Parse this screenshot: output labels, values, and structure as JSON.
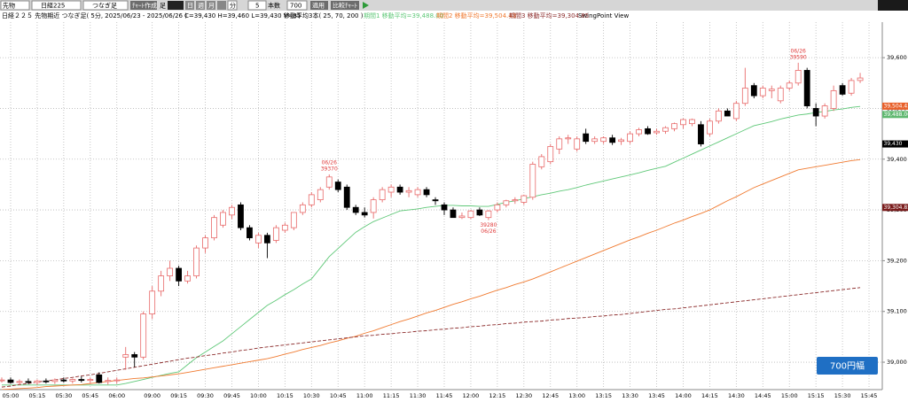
{
  "toolbar": {
    "market": "先物",
    "symbol": "日経225",
    "mode": "つなぎ足",
    "create": "ﾁｬｰﾄ作成",
    "bar": "足",
    "day": "日",
    "week": "週",
    "month": "月",
    "minute": "分",
    "interval": 5,
    "count_label": "本数",
    "count": 700,
    "apply": "適用",
    "compare": "比較ﾁｬｰﾄ"
  },
  "chart_data": {
    "type": "candlestick",
    "title": "日経２２５ 先物期近 つなぎ足( 5分, 2025/06/23 - 2025/06/26 )",
    "ohlcv_text": "C=39,430 H=39,460 L=39,430 V=85",
    "ma_text": "移動平均3本( 25, 70, 200 )",
    "view_text": "SwingPoint View",
    "range_button": "700円幅",
    "up_color": "#e86a6a",
    "down_color": "#000000",
    "grid": true,
    "ylim": [
      38946,
      39670
    ],
    "yticks": [
      {
        "value": 39000,
        "label": "39,000"
      },
      {
        "value": 39100,
        "label": "39,100"
      },
      {
        "value": 39200,
        "label": "39,200"
      },
      {
        "value": 39300,
        "label": "39,300"
      },
      {
        "value": 39400,
        "label": "39,400"
      },
      {
        "value": 39500,
        "label": "39,500"
      },
      {
        "value": 39600,
        "label": "39,600"
      }
    ],
    "categories": [
      null,
      "05:00",
      null,
      null,
      "05:15",
      null,
      null,
      "05:30",
      null,
      null,
      "05:45",
      null,
      null,
      "06:00",
      null,
      null,
      null,
      "09:00",
      null,
      null,
      "09:15",
      null,
      null,
      "09:30",
      null,
      null,
      "09:45",
      null,
      null,
      "10:00",
      null,
      null,
      "10:15",
      null,
      null,
      "10:30",
      null,
      null,
      "10:45",
      null,
      null,
      "11:00",
      null,
      null,
      "11:15",
      null,
      null,
      "11:30",
      null,
      null,
      "11:45",
      null,
      null,
      "12:00",
      null,
      null,
      "12:15",
      null,
      null,
      "12:30",
      null,
      null,
      "12:45",
      null,
      null,
      "13:00",
      null,
      null,
      "13:15",
      null,
      null,
      "13:30",
      null,
      null,
      "13:45",
      null,
      null,
      "14:00",
      null,
      null,
      "14:15",
      null,
      null,
      "14:30",
      null,
      null,
      "14:45",
      null,
      null,
      "15:00",
      null,
      null,
      "15:15",
      null,
      null,
      "15:30",
      null,
      null,
      "15:45"
    ],
    "open": [
      38965,
      38965,
      38960,
      38962,
      38960,
      38963,
      38962,
      38965,
      38963,
      38966,
      38964,
      38975,
      38962,
      38964,
      39010,
      39015,
      39010,
      39095,
      39140,
      39170,
      39185,
      39160,
      39170,
      39225,
      39245,
      39270,
      39290,
      39310,
      39265,
      39235,
      39250,
      39240,
      39260,
      39265,
      39295,
      39310,
      39320,
      39345,
      39355,
      39345,
      39305,
      39295,
      39295,
      39320,
      39335,
      39345,
      39335,
      39330,
      39340,
      39320,
      39310,
      39300,
      39285,
      39285,
      39300,
      39285,
      39300,
      39310,
      39318,
      39315,
      39325,
      39385,
      39395,
      39420,
      39440,
      39420,
      39450,
      39435,
      39435,
      39442,
      39435,
      39435,
      39450,
      39460,
      39452,
      39455,
      39460,
      39468,
      39470,
      39468,
      39450,
      39475,
      39495,
      39480,
      39510,
      39545,
      39525,
      39535,
      39515,
      39540,
      39550,
      39575,
      39500,
      39485,
      39500,
      39545,
      39530,
      39555,
      null
    ],
    "high": [
      38970,
      38970,
      38966,
      38968,
      38966,
      38968,
      38968,
      38970,
      38968,
      38972,
      38970,
      38980,
      38970,
      38970,
      39030,
      39020,
      39100,
      39150,
      39180,
      39200,
      39190,
      39180,
      39230,
      39250,
      39290,
      39300,
      39310,
      39315,
      39270,
      39255,
      39255,
      39270,
      39275,
      39295,
      39315,
      39335,
      39345,
      39370,
      39360,
      39350,
      39310,
      39305,
      39325,
      39345,
      39350,
      39350,
      39345,
      39345,
      39345,
      39325,
      39315,
      39305,
      39295,
      39300,
      39305,
      39300,
      39315,
      39320,
      39325,
      39330,
      39395,
      39410,
      39430,
      39445,
      39448,
      39445,
      39460,
      39445,
      39445,
      39448,
      39442,
      39455,
      39462,
      39465,
      39460,
      39465,
      39472,
      39480,
      39480,
      39475,
      39480,
      39500,
      39500,
      39515,
      39580,
      39550,
      39545,
      39545,
      39545,
      39555,
      39590,
      39580,
      39510,
      39510,
      39545,
      39550,
      39560,
      39570,
      null
    ],
    "low": [
      38960,
      38958,
      38955,
      38957,
      38955,
      38958,
      38957,
      38960,
      38958,
      38960,
      38958,
      38958,
      38956,
      38958,
      38985,
      38990,
      39005,
      39085,
      39130,
      39160,
      39150,
      39155,
      39165,
      39215,
      39240,
      39265,
      39282,
      39260,
      39240,
      39225,
      39205,
      39235,
      39255,
      39260,
      39290,
      39305,
      39315,
      39340,
      39335,
      39300,
      39290,
      39285,
      39283,
      39315,
      39325,
      39330,
      39325,
      39325,
      39325,
      39310,
      39290,
      39285,
      39282,
      39282,
      39288,
      39280,
      39295,
      39305,
      39312,
      39310,
      39320,
      39380,
      39390,
      39410,
      39430,
      39415,
      39430,
      39430,
      39430,
      39428,
      39428,
      39430,
      39445,
      39448,
      39448,
      39450,
      39455,
      39460,
      39465,
      39425,
      39445,
      39470,
      39485,
      39475,
      39505,
      39520,
      39520,
      39520,
      39510,
      39535,
      39545,
      39500,
      39465,
      39480,
      39495,
      39525,
      39525,
      39550,
      null
    ],
    "close": [
      38965,
      38960,
      38962,
      38960,
      38963,
      38962,
      38965,
      38963,
      38966,
      38964,
      38966,
      38960,
      38964,
      38965,
      39015,
      39010,
      39095,
      39140,
      39170,
      39185,
      39160,
      39170,
      39225,
      39245,
      39285,
      39295,
      39305,
      39265,
      39245,
      39250,
      39235,
      39265,
      39270,
      39295,
      39310,
      39330,
      39340,
      39365,
      39340,
      39305,
      39295,
      39290,
      39320,
      39340,
      39345,
      39335,
      39338,
      39340,
      39330,
      39318,
      39300,
      39285,
      39288,
      39298,
      39290,
      39298,
      39310,
      39318,
      39320,
      39328,
      39390,
      39405,
      39425,
      39440,
      39442,
      39440,
      39435,
      39440,
      39442,
      39433,
      39438,
      39450,
      39458,
      39450,
      39455,
      39462,
      39470,
      39478,
      39478,
      39430,
      39475,
      39495,
      39485,
      39510,
      39540,
      39525,
      39540,
      39538,
      39540,
      39550,
      39575,
      39505,
      39485,
      39505,
      39535,
      39528,
      39555,
      39560,
      null
    ],
    "series": [
      {
        "name": "期間1 移動平均=39,488.00",
        "color": "#5fc878",
        "style": "solid",
        "values": [
          38955,
          38955,
          38955,
          38955,
          38955,
          38955,
          38955,
          38955,
          38955,
          38955,
          38955,
          38955,
          38955,
          38955,
          38958,
          38962,
          38966,
          38970,
          38974,
          38978,
          38981,
          38995,
          39009,
          39020,
          39031,
          39042,
          39056,
          39070,
          39084,
          39098,
          39112,
          39122,
          39133,
          39143,
          39154,
          39164,
          39186,
          39208,
          39224,
          39240,
          39256,
          39267,
          39277,
          39284,
          39291,
          39298,
          39300,
          39302,
          39305,
          39307,
          39309,
          39309,
          39308,
          39308,
          39307,
          39307,
          39311,
          39315,
          39318,
          39322,
          39326,
          39330,
          39333,
          39337,
          39340,
          39344,
          39349,
          39353,
          39357,
          39361,
          39365,
          39369,
          39373,
          39378,
          39382,
          39386,
          39394,
          39402,
          39410,
          39418,
          39426,
          39434,
          39442,
          39450,
          39458,
          39466,
          39470,
          39474,
          39479,
          39483,
          39487,
          39489,
          39492,
          39494,
          39497,
          39499,
          39502,
          39504,
          null
        ]
      },
      {
        "name": "期間2 移動平均=39,504.43",
        "color": "#f07a30",
        "style": "solid",
        "values": [
          38946,
          38947,
          38948,
          38949,
          38950,
          38952,
          38953,
          38954,
          38955,
          38956,
          38958,
          38960,
          38962,
          38964,
          38966,
          38968,
          38969,
          38971,
          38973,
          38975,
          38977,
          38980,
          38983,
          38986,
          38989,
          38992,
          38995,
          38998,
          39001,
          39004,
          39007,
          39011,
          39016,
          39020,
          39025,
          39029,
          39033,
          39038,
          39042,
          39047,
          39051,
          39057,
          39062,
          39068,
          39074,
          39080,
          39085,
          39091,
          39097,
          39102,
          39108,
          39114,
          39119,
          39125,
          39130,
          39136,
          39142,
          39147,
          39153,
          39158,
          39164,
          39171,
          39178,
          39185,
          39192,
          39199,
          39206,
          39213,
          39220,
          39227,
          39234,
          39241,
          39247,
          39254,
          39260,
          39267,
          39274,
          39280,
          39287,
          39293,
          39300,
          39309,
          39318,
          39326,
          39335,
          39344,
          39351,
          39358,
          39365,
          39372,
          39379,
          39382,
          39385,
          39388,
          39391,
          39394,
          39397,
          39399,
          null
        ]
      },
      {
        "name": "期間3 移動平均=39,304.85",
        "color": "#8b2a2a",
        "style": "dashed",
        "values": [
          38951,
          38953,
          38956,
          38958,
          38961,
          38963,
          38965,
          38968,
          38970,
          38973,
          38975,
          38978,
          38981,
          38984,
          38987,
          38990,
          38993,
          38996,
          38999,
          39002,
          39005,
          39008,
          39010,
          39013,
          39015,
          39018,
          39020,
          39023,
          39025,
          39028,
          39030,
          39032,
          39034,
          39036,
          39038,
          39040,
          39042,
          39044,
          39046,
          39048,
          39050,
          39052,
          39053,
          39055,
          39056,
          39058,
          39059,
          39061,
          39062,
          39064,
          39065,
          39067,
          39068,
          39070,
          39071,
          39073,
          39074,
          39076,
          39077,
          39079,
          39080,
          39081,
          39083,
          39084,
          39086,
          39087,
          39088,
          39090,
          39091,
          39093,
          39094,
          39096,
          39098,
          39100,
          39102,
          39104,
          39105,
          39107,
          39109,
          39111,
          39113,
          39115,
          39117,
          39119,
          39121,
          39123,
          39125,
          39127,
          39129,
          39131,
          39133,
          39135,
          39137,
          39139,
          39141,
          39143,
          39145,
          39147,
          null
        ]
      }
    ],
    "price_tags": [
      {
        "value": 39504.43,
        "label": "39,504.43",
        "color": "#e8602a"
      },
      {
        "value": 39488,
        "label": "39,488.00",
        "color": "#5fb870"
      },
      {
        "value": 39430,
        "label": "39,430",
        "color": "#000000"
      },
      {
        "value": 39304.85,
        "label": "39,304.85",
        "color": "#7a1c1c"
      }
    ],
    "annotations": [
      {
        "kind": "high",
        "date": "06/26",
        "value": 39370
      },
      {
        "kind": "low",
        "date": "06/26",
        "value": 39280
      },
      {
        "kind": "high",
        "date": "06/26",
        "value": 39590
      }
    ]
  }
}
